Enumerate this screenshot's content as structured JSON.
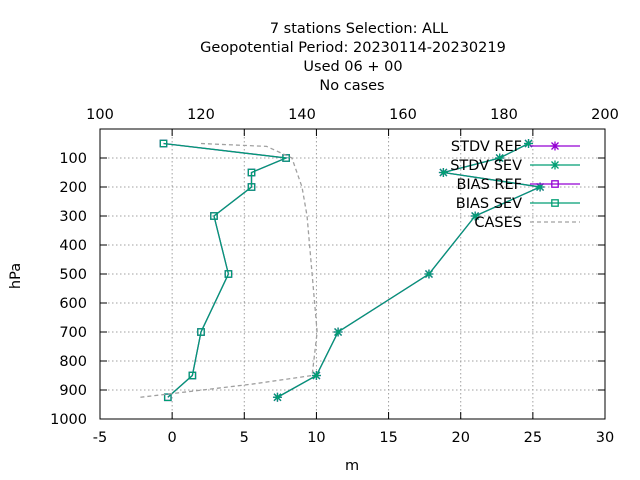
{
  "chart_data": {
    "type": "line",
    "title_lines": [
      "7 stations Selection: ALL",
      "Geopotential  Period: 20230114-20230219",
      "Used  06 + 00",
      "No cases"
    ],
    "xlabel": "m",
    "ylabel": "hPa",
    "xlim": [
      -5,
      30
    ],
    "x2lim": [
      100,
      200
    ],
    "ylim": [
      1000,
      0
    ],
    "xticks": [
      -5,
      0,
      5,
      10,
      15,
      20,
      25,
      30
    ],
    "x2ticks": [
      100,
      120,
      140,
      160,
      180,
      200
    ],
    "yticks": [
      100,
      200,
      300,
      400,
      500,
      600,
      700,
      800,
      900,
      1000
    ],
    "grid": true,
    "legend_position": "top-right",
    "series": [
      {
        "name": "STDV REF",
        "color": "#9400d3",
        "marker": "star",
        "axis": "x1",
        "points": [
          [
            7.3,
            925
          ],
          [
            10,
            850
          ],
          [
            11.5,
            700
          ],
          [
            17.8,
            500
          ],
          [
            21,
            300
          ],
          [
            25.5,
            200
          ],
          [
            18.8,
            150
          ],
          [
            22.7,
            100
          ],
          [
            24.7,
            50
          ]
        ]
      },
      {
        "name": "STDV SEV",
        "color": "#009e73",
        "marker": "star",
        "axis": "x1",
        "points": [
          [
            7.3,
            925
          ],
          [
            10,
            850
          ],
          [
            11.5,
            700
          ],
          [
            17.8,
            500
          ],
          [
            21,
            300
          ],
          [
            25.5,
            200
          ],
          [
            18.8,
            150
          ],
          [
            22.7,
            100
          ],
          [
            24.7,
            50
          ]
        ]
      },
      {
        "name": "BIAS REF",
        "color": "#9400d3",
        "marker": "square",
        "axis": "x1",
        "points": [
          [
            -0.3,
            925
          ],
          [
            1.4,
            850
          ],
          [
            2,
            700
          ],
          [
            3.9,
            500
          ],
          [
            2.9,
            300
          ],
          [
            5.5,
            200
          ],
          [
            5.5,
            150
          ],
          [
            7.9,
            100
          ],
          [
            -0.6,
            50
          ]
        ]
      },
      {
        "name": "BIAS SEV",
        "color": "#009e73",
        "marker": "square",
        "axis": "x1",
        "points": [
          [
            -0.3,
            925
          ],
          [
            1.4,
            850
          ],
          [
            2,
            700
          ],
          [
            3.9,
            500
          ],
          [
            2.9,
            300
          ],
          [
            5.5,
            200
          ],
          [
            5.5,
            150
          ],
          [
            7.9,
            100
          ],
          [
            -0.6,
            50
          ]
        ]
      },
      {
        "name": "CASES",
        "color": "#a0a0a0",
        "marker": "none",
        "dash": true,
        "axis": "x2",
        "points": [
          [
            108,
            925
          ],
          [
            113,
            915
          ],
          [
            130,
            880
          ],
          [
            142,
            850
          ],
          [
            143,
            700
          ],
          [
            142,
            500
          ],
          [
            141,
            300
          ],
          [
            140,
            200
          ],
          [
            139,
            150
          ],
          [
            138,
            100
          ],
          [
            133,
            60
          ],
          [
            120,
            50
          ]
        ]
      }
    ]
  }
}
